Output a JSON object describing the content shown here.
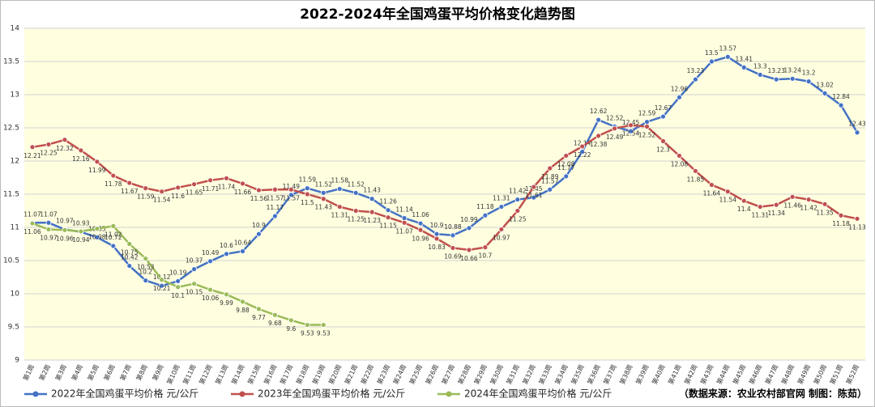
{
  "chart_data": {
    "type": "line",
    "title": "2022-2024年全国鸡蛋平均价格变化趋势图",
    "source": "（数据来源：农业农村部官网 制图：陈茹）",
    "categories": [
      "第1周",
      "第2周",
      "第3周",
      "第4周",
      "第5周",
      "第6周",
      "第7周",
      "第8周",
      "第9周",
      "第10周",
      "第11周",
      "第12周",
      "第13周",
      "第14周",
      "第15周",
      "第16周",
      "第17周",
      "第18周",
      "第19周",
      "第20周",
      "第21周",
      "第22周",
      "第23周",
      "第24周",
      "第25周",
      "第26周",
      "第27周",
      "第28周",
      "第29周",
      "第30周",
      "第31周",
      "第32周",
      "第33周",
      "第34周",
      "第35周",
      "第36周",
      "第37周",
      "第38周",
      "第39周",
      "第40周",
      "第41周",
      "第42周",
      "第43周",
      "第44周",
      "第45周",
      "第46周",
      "第47周",
      "第48周",
      "第49周",
      "第50周",
      "第51周",
      "第52周"
    ],
    "series": [
      {
        "name": "2022年全国鸡蛋平均价格 元/公斤",
        "color": "#4472c4",
        "values": [
          11.07,
          11.07,
          10.97,
          10.93,
          10.85,
          10.72,
          10.42,
          10.2,
          10.12,
          10.19,
          10.37,
          10.49,
          10.6,
          10.64,
          10.9,
          11.17,
          11.49,
          11.59,
          11.52,
          11.58,
          11.52,
          11.43,
          11.26,
          11.14,
          11.06,
          10.9,
          10.88,
          10.99,
          11.18,
          11.31,
          11.42,
          11.45,
          11.57,
          11.77,
          12.14,
          12.62,
          12.52,
          12.45,
          12.59,
          12.67,
          12.96,
          13.23,
          13.5,
          13.57,
          13.41,
          13.3,
          13.23,
          13.24,
          13.2,
          13.02,
          12.84,
          12.43
        ]
      },
      {
        "name": "2023年全国鸡蛋平均价格 元/公斤",
        "color": "#c0504d",
        "values": [
          12.21,
          12.25,
          12.32,
          12.16,
          11.99,
          11.78,
          11.67,
          11.59,
          11.54,
          11.6,
          11.65,
          11.71,
          11.74,
          11.66,
          11.56,
          11.57,
          11.57,
          11.5,
          11.43,
          11.31,
          11.25,
          11.23,
          11.15,
          11.07,
          10.96,
          10.83,
          10.69,
          10.66,
          10.7,
          10.97,
          11.25,
          11.61,
          11.89,
          12.08,
          12.22,
          12.38,
          12.49,
          12.54,
          12.52,
          12.3,
          12.08,
          11.85,
          11.64,
          11.54,
          11.4,
          11.31,
          11.34,
          11.46,
          11.42,
          11.35,
          11.18,
          11.13
        ]
      },
      {
        "name": "2024年全国鸡蛋平均价格 元/公斤",
        "color": "#9bbb59",
        "values": [
          11.06,
          10.97,
          10.96,
          10.94,
          10.98,
          11.02,
          10.75,
          10.53,
          10.21,
          10.1,
          10.15,
          10.06,
          9.99,
          9.88,
          9.77,
          9.68,
          9.6,
          9.53,
          9.53,
          null,
          null,
          null,
          null,
          null,
          null,
          null,
          null,
          null,
          null,
          null,
          null,
          null,
          null,
          null,
          null,
          null,
          null,
          null,
          null,
          null,
          null,
          null,
          null,
          null,
          null,
          null,
          null,
          null,
          null,
          null,
          null,
          null
        ]
      }
    ],
    "ylim": [
      9,
      14
    ],
    "yticks": [
      9,
      9.5,
      10,
      10.5,
      11,
      11.5,
      12,
      12.5,
      13,
      13.5,
      14
    ],
    "grid": true
  }
}
